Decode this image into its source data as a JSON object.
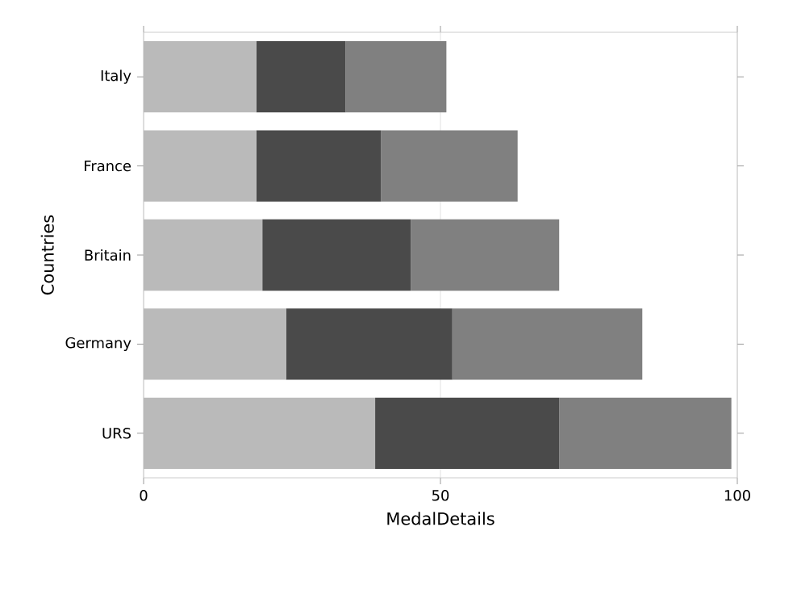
{
  "chart_data": {
    "type": "bar",
    "orientation": "horizontal",
    "stacked": true,
    "ylabel": "Countries",
    "xlabel": "MedalDetails",
    "categories": [
      "Italy",
      "France",
      "Britain",
      "Germany",
      "URS"
    ],
    "series": [
      {
        "color": "#bababa",
        "values": [
          19,
          19,
          20,
          24,
          39
        ]
      },
      {
        "color": "#4a4a4a",
        "values": [
          15,
          21,
          25,
          28,
          31
        ]
      },
      {
        "color": "#808080",
        "values": [
          17,
          23,
          25,
          32,
          29
        ]
      }
    ],
    "xlim": [
      0,
      100
    ],
    "xticks": [
      0,
      50,
      100
    ],
    "grid": "x"
  }
}
